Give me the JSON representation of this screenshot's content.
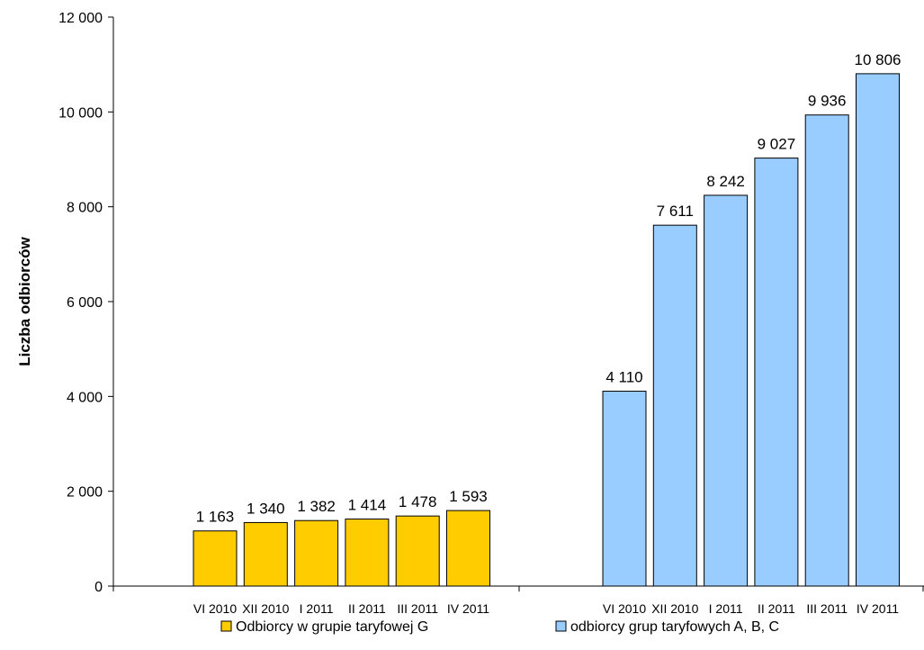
{
  "chart_data": {
    "type": "bar",
    "ylabel": "Liczba odbiorców",
    "xlabel": "",
    "ylim": [
      0,
      12000
    ],
    "ytick_step": 2000,
    "ytick_labels": [
      "0",
      "2 000",
      "4 000",
      "6 000",
      "8 000",
      "10 000",
      "12 000"
    ],
    "grid": false,
    "legend_position": "bottom",
    "groups": [
      {
        "series_name": "Odbiorcy w grupie taryfowej G",
        "color": "#FFCC00",
        "categories": [
          "VI 2010",
          "XII 2010",
          "I 2011",
          "II 2011",
          "III 2011",
          "IV 2011"
        ],
        "values": [
          1163,
          1340,
          1382,
          1414,
          1478,
          1593
        ],
        "labels": [
          "1 163",
          "1 340",
          "1 382",
          "1 414",
          "1 478",
          "1 593"
        ]
      },
      {
        "series_name": "odbiorcy grup taryfowych A, B, C",
        "color": "#99CCFF",
        "categories": [
          "VI 2010",
          "XII 2010",
          "I 2011",
          "II 2011",
          "III 2011",
          "IV 2011"
        ],
        "values": [
          4110,
          7611,
          8242,
          9027,
          9936,
          10806
        ],
        "labels": [
          "4 110",
          "7 611",
          "8 242",
          "9 027",
          "9 936",
          "10 806"
        ]
      }
    ]
  }
}
